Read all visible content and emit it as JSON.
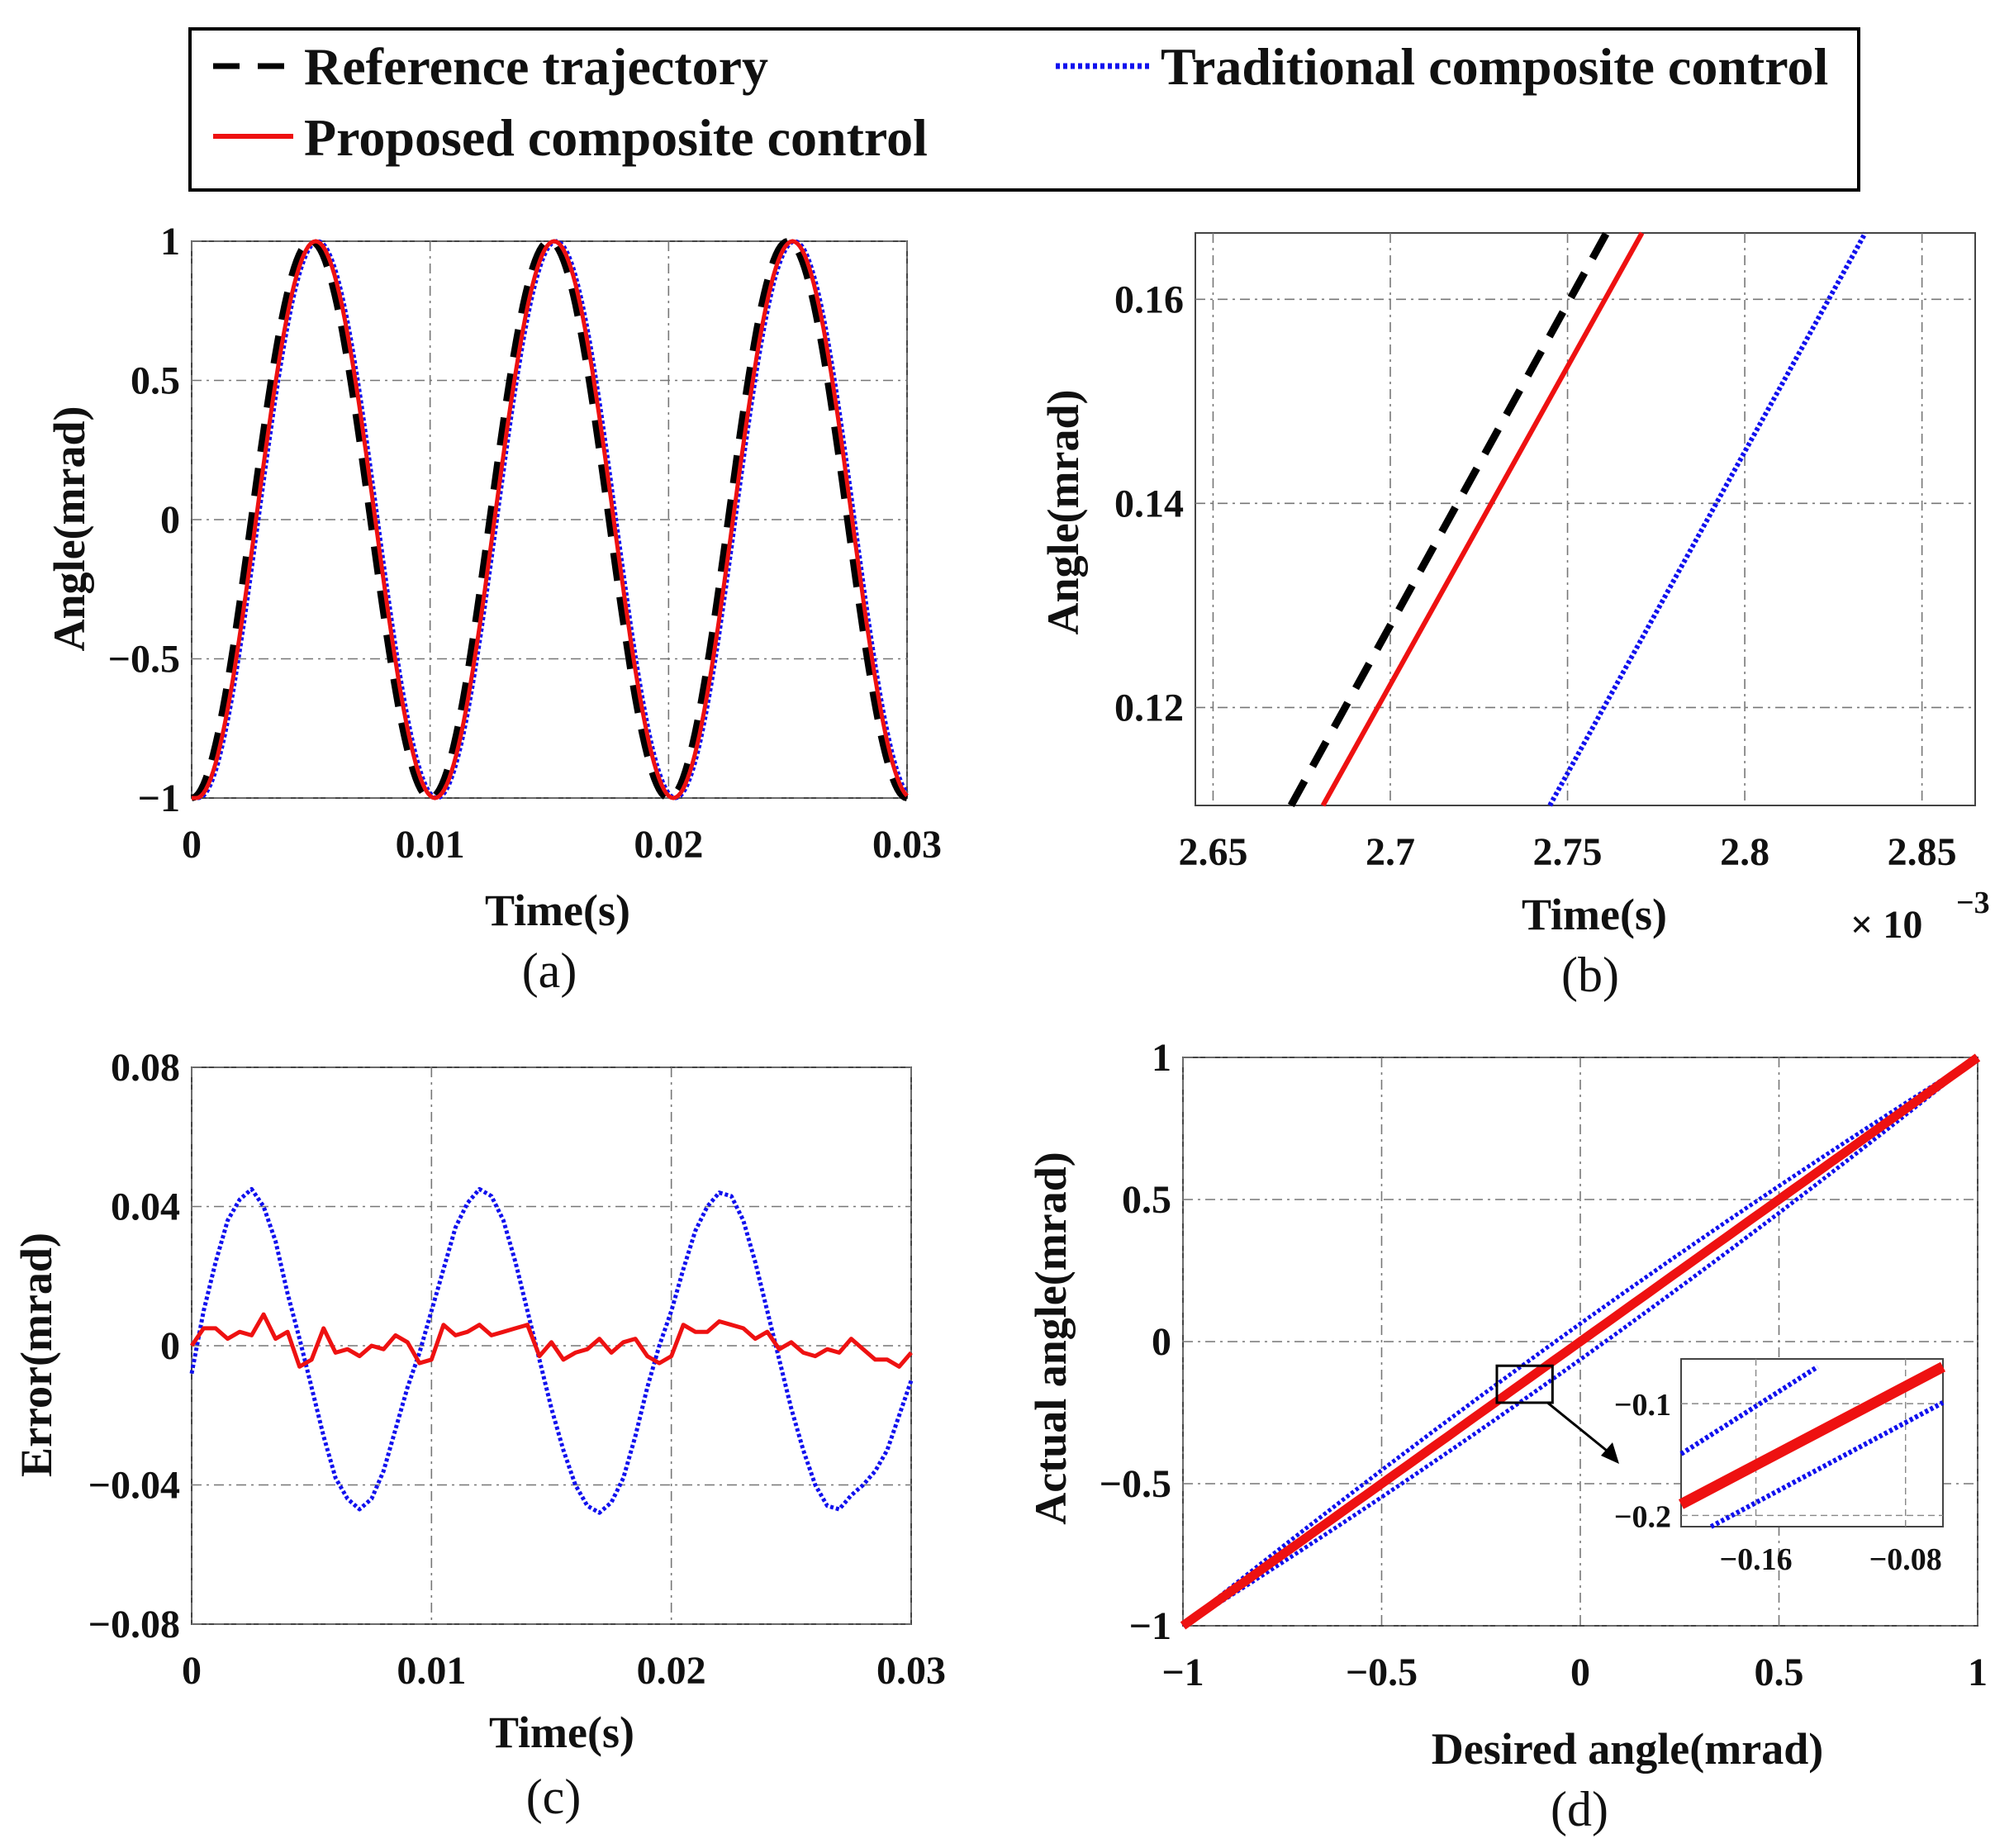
{
  "legend": {
    "entries": [
      {
        "label": "Reference trajectory",
        "color": "#000000",
        "style": "dashed"
      },
      {
        "label": "Traditional composite control",
        "color": "#1010ee",
        "style": "dotted"
      },
      {
        "label": "Proposed composite control",
        "color": "#ee1111",
        "style": "solid"
      }
    ]
  },
  "chart_data": [
    {
      "id": "a",
      "type": "line",
      "caption": "(a)",
      "xlabel": "Time(s)",
      "ylabel": "Angle(mrad)",
      "xlim": [
        0,
        0.03
      ],
      "ylim": [
        -1,
        1
      ],
      "xticks": [
        0,
        0.01,
        0.02,
        0.03
      ],
      "xtick_labels": [
        "0",
        "0.01",
        "0.02",
        "0.03"
      ],
      "yticks": [
        -1,
        -0.5,
        0,
        0.5,
        1
      ],
      "ytick_labels": [
        "−1",
        "−0.5",
        "0",
        "0.5",
        "1"
      ],
      "grid": true,
      "description": "Reference is a cosine of period 0.01 s starting at -1; tracked curves lag by a small delay",
      "series": [
        {
          "name": "Reference trajectory",
          "period": 0.01,
          "amplitude": 1,
          "delay": 0.0
        },
        {
          "name": "Traditional composite control",
          "period": 0.01,
          "amplitude": 1,
          "delay": 0.0003
        },
        {
          "name": "Proposed composite control",
          "period": 0.01,
          "amplitude": 1,
          "delay": 0.0002
        }
      ]
    },
    {
      "id": "b",
      "type": "line",
      "caption": "(b)",
      "xlabel": "Time(s)",
      "ylabel": "Angle(mrad)",
      "x_multiplier": "× 10",
      "x_multiplier_exp": "−3",
      "xlim": [
        2.645,
        2.865
      ],
      "ylim": [
        0.1104,
        0.1665
      ],
      "xticks": [
        2.65,
        2.7,
        2.75,
        2.8,
        2.85
      ],
      "xtick_labels": [
        "2.65",
        "2.7",
        "2.75",
        "2.8",
        "2.85"
      ],
      "yticks": [
        0.12,
        0.14,
        0.16
      ],
      "ytick_labels": [
        "0.12",
        "0.14",
        "0.16"
      ],
      "grid": true,
      "series": [
        {
          "name": "Reference trajectory",
          "x": [
            2.672,
            2.761
          ],
          "y": [
            0.1104,
            0.1665
          ]
        },
        {
          "name": "Proposed composite control",
          "x": [
            2.681,
            2.771
          ],
          "y": [
            0.1104,
            0.1665
          ]
        },
        {
          "name": "Traditional composite control",
          "x": [
            2.745,
            2.834
          ],
          "y": [
            0.1104,
            0.1665
          ]
        }
      ]
    },
    {
      "id": "c",
      "type": "line",
      "caption": "(c)",
      "xlabel": "Time(s)",
      "ylabel": "Error(mrad)",
      "xlim": [
        0,
        0.03
      ],
      "ylim": [
        -0.08,
        0.08
      ],
      "xticks": [
        0,
        0.01,
        0.02,
        0.03
      ],
      "xtick_labels": [
        "0",
        "0.01",
        "0.02",
        "0.03"
      ],
      "yticks": [
        -0.08,
        -0.04,
        0,
        0.04,
        0.08
      ],
      "ytick_labels": [
        "−0.08",
        "−0.04",
        "0",
        "0.04",
        "0.08"
      ],
      "grid": true,
      "series": [
        {
          "name": "Traditional composite control",
          "x": [
            0,
            0.0005,
            0.001,
            0.0015,
            0.002,
            0.0025,
            0.003,
            0.0035,
            0.004,
            0.0045,
            0.005,
            0.0055,
            0.006,
            0.0065,
            0.007,
            0.0075,
            0.008,
            0.0085,
            0.009,
            0.0095,
            0.01,
            0.0105,
            0.011,
            0.0115,
            0.012,
            0.0125,
            0.013,
            0.0135,
            0.014,
            0.0145,
            0.015,
            0.0155,
            0.016,
            0.0165,
            0.017,
            0.0175,
            0.018,
            0.0185,
            0.019,
            0.0195,
            0.02,
            0.0205,
            0.021,
            0.0215,
            0.022,
            0.0225,
            0.023,
            0.0235,
            0.024,
            0.0245,
            0.025,
            0.0255,
            0.026,
            0.0265,
            0.027,
            0.0275,
            0.028,
            0.0285,
            0.029,
            0.0295,
            0.03
          ],
          "y": [
            -0.008,
            0.01,
            0.024,
            0.036,
            0.042,
            0.045,
            0.04,
            0.03,
            0.015,
            0.002,
            -0.012,
            -0.026,
            -0.038,
            -0.044,
            -0.047,
            -0.044,
            -0.036,
            -0.024,
            -0.012,
            -0.002,
            0.01,
            0.022,
            0.034,
            0.041,
            0.045,
            0.043,
            0.036,
            0.024,
            0.01,
            -0.004,
            -0.018,
            -0.03,
            -0.04,
            -0.046,
            -0.048,
            -0.045,
            -0.038,
            -0.026,
            -0.012,
            0.0,
            0.01,
            0.022,
            0.033,
            0.04,
            0.044,
            0.043,
            0.036,
            0.024,
            0.01,
            -0.004,
            -0.018,
            -0.03,
            -0.04,
            -0.046,
            -0.047,
            -0.043,
            -0.04,
            -0.036,
            -0.03,
            -0.02,
            -0.01
          ]
        },
        {
          "name": "Proposed composite control",
          "x": [
            0,
            0.0005,
            0.001,
            0.0015,
            0.002,
            0.0025,
            0.003,
            0.0035,
            0.004,
            0.0045,
            0.005,
            0.0055,
            0.006,
            0.0065,
            0.007,
            0.0075,
            0.008,
            0.0085,
            0.009,
            0.0095,
            0.01,
            0.0105,
            0.011,
            0.0115,
            0.012,
            0.0125,
            0.013,
            0.0135,
            0.014,
            0.0145,
            0.015,
            0.0155,
            0.016,
            0.0165,
            0.017,
            0.0175,
            0.018,
            0.0185,
            0.019,
            0.0195,
            0.02,
            0.0205,
            0.021,
            0.0215,
            0.022,
            0.0225,
            0.023,
            0.0235,
            0.024,
            0.0245,
            0.025,
            0.0255,
            0.026,
            0.0265,
            0.027,
            0.0275,
            0.028,
            0.0285,
            0.029,
            0.0295,
            0.03
          ],
          "y": [
            0.0,
            0.005,
            0.005,
            0.002,
            0.004,
            0.003,
            0.009,
            0.002,
            0.004,
            -0.006,
            -0.004,
            0.005,
            -0.002,
            -0.001,
            -0.003,
            0.0,
            -0.001,
            0.003,
            0.001,
            -0.005,
            -0.004,
            0.006,
            0.003,
            0.004,
            0.006,
            0.003,
            0.004,
            0.005,
            0.006,
            -0.003,
            0.001,
            -0.004,
            -0.002,
            -0.001,
            0.002,
            -0.002,
            0.001,
            0.002,
            -0.003,
            -0.005,
            -0.003,
            0.006,
            0.004,
            0.004,
            0.007,
            0.006,
            0.005,
            0.002,
            0.004,
            -0.001,
            0.001,
            -0.002,
            -0.003,
            -0.001,
            -0.002,
            0.002,
            -0.001,
            -0.004,
            -0.004,
            -0.006,
            -0.002
          ]
        }
      ]
    },
    {
      "id": "d",
      "type": "line",
      "caption": "(d)",
      "xlabel": "Desired angle(mrad)",
      "ylabel": "Actual angle(mrad)",
      "xlim": [
        -1,
        1
      ],
      "ylim": [
        -1,
        1
      ],
      "xticks": [
        -1,
        -0.5,
        0,
        0.5,
        1
      ],
      "xtick_labels": [
        "−1",
        "−0.5",
        "0",
        "0.5",
        "1"
      ],
      "yticks": [
        -1,
        -0.5,
        0,
        0.5,
        1
      ],
      "ytick_labels": [
        "−1",
        "−0.5",
        "0",
        "0.5",
        "1"
      ],
      "grid": true,
      "series": [
        {
          "name": "Traditional composite control (upper branch)",
          "x": [
            -1,
            1
          ],
          "y": [
            -1,
            1
          ],
          "offset": 0.045
        },
        {
          "name": "Traditional composite control (lower branch)",
          "x": [
            -1,
            1
          ],
          "y": [
            -1,
            1
          ],
          "offset": -0.045
        },
        {
          "name": "Proposed composite control",
          "x": [
            -1,
            1
          ],
          "y": [
            -1,
            1
          ],
          "offset": 0
        }
      ],
      "zoom_box": {
        "xlim": [
          -0.21,
          -0.07
        ],
        "ylim": [
          -0.215,
          -0.085
        ]
      },
      "inset": {
        "xlim": [
          -0.2,
          -0.06
        ],
        "ylim": [
          -0.21,
          -0.06
        ],
        "xticks": [
          -0.16,
          -0.08
        ],
        "xtick_labels": [
          "−0.16",
          "−0.08"
        ],
        "yticks": [
          -0.2,
          -0.1
        ],
        "ytick_labels": [
          "−0.2",
          "−0.1"
        ],
        "series": [
          {
            "name": "Traditional upper",
            "x": [
              -0.2,
              -0.127
            ],
            "y": [
              -0.145,
              -0.067
            ]
          },
          {
            "name": "Proposed",
            "x": [
              -0.2,
              -0.06
            ],
            "y": [
              -0.19,
              -0.067
            ]
          },
          {
            "name": "Traditional lower",
            "x": [
              -0.184,
              -0.06
            ],
            "y": [
              -0.21,
              -0.099
            ]
          }
        ]
      }
    }
  ]
}
